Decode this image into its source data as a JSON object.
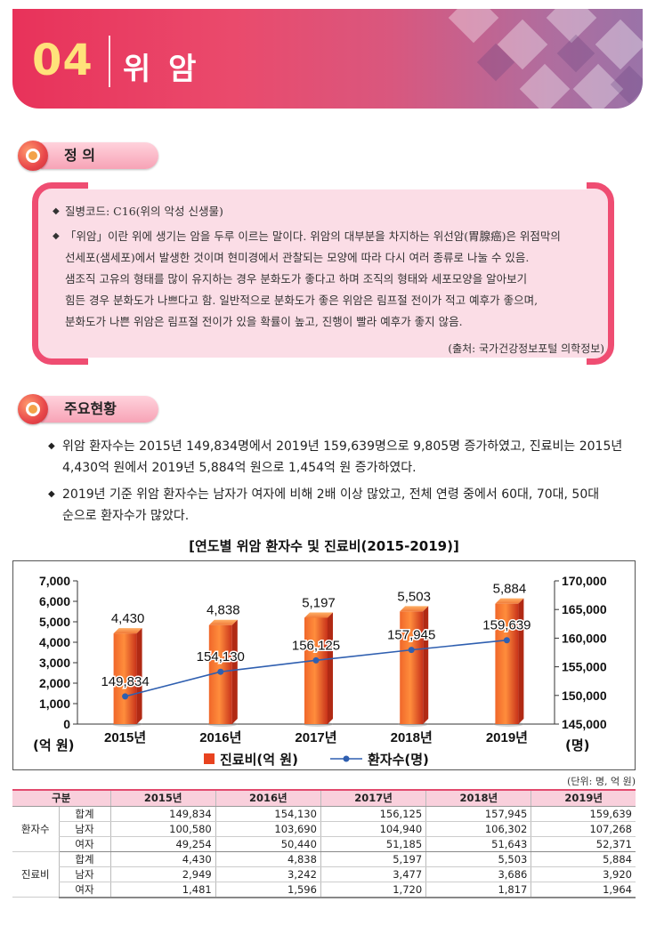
{
  "header": {
    "number": "04",
    "title": "위 암"
  },
  "definition": {
    "heading": "정  의",
    "code_line": "질병코드: C16(위의 악성 신생물)",
    "description_lines": [
      "「위암」이란 위에 생기는 암을 두루 이르는 말이다. 위암의 대부분을 차지하는 위선암(胃腺癌)은 위점막의",
      "선세포(샘세포)에서 발생한 것이며 현미경에서 관찰되는 모양에 따라 다시 여러 종류로 나눌 수 있음.",
      "샘조직 고유의 형태를 많이 유지하는 경우 분화도가 좋다고 하며 조직의 형태와 세포모양을 알아보기",
      "힘든 경우 분화도가 나쁘다고 함. 일반적으로 분화도가 좋은 위암은 림프절 전이가 적고 예후가 좋으며,",
      "분화도가 나쁜 위암은 림프절 전이가 있을 확률이 높고, 진행이 빨라 예후가 좋지 않음."
    ],
    "source": "(출처: 국가건강정보포털 의학정보)"
  },
  "status": {
    "heading": "주요현황",
    "bullets": [
      [
        "위암 환자수는 2015년 149,834명에서 2019년 159,639명으로 9,805명 증가하였고, 진료비는 2015년",
        "4,430억 원에서 2019년 5,884억 원으로 1,454억 원 증가하였다."
      ],
      [
        "2019년 기준 위암 환자수는 남자가 여자에 비해 2배 이상 많았고, 전체 연령 중에서 60대, 70대, 50대",
        "순으로 환자수가 많았다."
      ]
    ]
  },
  "chart_data": {
    "type": "bar+line",
    "title": "[연도별 위암 환자수 및 진료비(2015-2019)]",
    "categories": [
      "2015년",
      "2016년",
      "2017년",
      "2018년",
      "2019년"
    ],
    "series": [
      {
        "name": "진료비(억 원)",
        "type": "bar",
        "axis": "left",
        "values": [
          4430,
          4838,
          5197,
          5503,
          5884
        ],
        "labels": [
          "4,430",
          "4,838",
          "5,197",
          "5,503",
          "5,884"
        ],
        "color": "#e8431f"
      },
      {
        "name": "환자수(명)",
        "type": "line",
        "axis": "right",
        "values": [
          149834,
          154130,
          156125,
          157945,
          159639
        ],
        "labels": [
          "149,834",
          "154,130",
          "156,125",
          "157,945",
          "159,639"
        ],
        "color": "#2f5fb0"
      }
    ],
    "left_axis": {
      "unit_label": "(억 원)",
      "ylim": [
        0,
        7000
      ],
      "ticks": [
        "0",
        "1,000",
        "2,000",
        "3,000",
        "4,000",
        "5,000",
        "6,000",
        "7,000"
      ]
    },
    "right_axis": {
      "unit_label": "(명)",
      "ylim": [
        145000,
        170000
      ],
      "ticks": [
        "145,000",
        "150,000",
        "155,000",
        "160,000",
        "165,000",
        "170,000"
      ]
    },
    "legend_position": "bottom"
  },
  "table": {
    "unit": "(단위: 명, 억 원)",
    "headers": [
      "구분",
      "2015년",
      "2016년",
      "2017년",
      "2018년",
      "2019년"
    ],
    "groups": [
      {
        "name": "환자수",
        "rows": [
          {
            "label": "합계",
            "values": [
              "149,834",
              "154,130",
              "156,125",
              "157,945",
              "159,639"
            ]
          },
          {
            "label": "남자",
            "values": [
              "100,580",
              "103,690",
              "104,940",
              "106,302",
              "107,268"
            ]
          },
          {
            "label": "여자",
            "values": [
              "49,254",
              "50,440",
              "51,185",
              "51,643",
              "52,371"
            ]
          }
        ]
      },
      {
        "name": "진료비",
        "rows": [
          {
            "label": "합계",
            "values": [
              "4,430",
              "4,838",
              "5,197",
              "5,503",
              "5,884"
            ]
          },
          {
            "label": "남자",
            "values": [
              "2,949",
              "3,242",
              "3,477",
              "3,686",
              "3,920"
            ]
          },
          {
            "label": "여자",
            "values": [
              "1,481",
              "1,596",
              "1,720",
              "1,817",
              "1,964"
            ]
          }
        ]
      }
    ]
  }
}
